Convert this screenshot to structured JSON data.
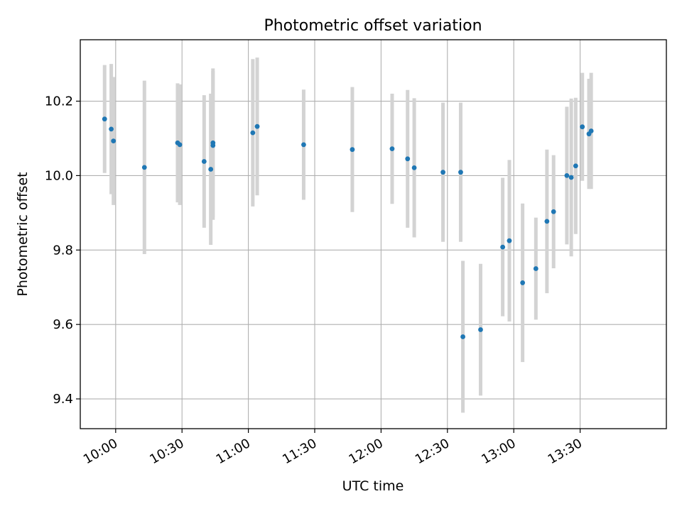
{
  "chart_data": {
    "type": "scatter",
    "title": "Photometric offset variation",
    "xlabel": "UTC time",
    "ylabel": "Photometric offset",
    "x_tick_labels": [
      "10:00",
      "10:30",
      "11:00",
      "11:30",
      "12:00",
      "12:30",
      "13:00",
      "13:30"
    ],
    "y_tick_labels": [
      "9.4",
      "9.6",
      "9.8",
      "10.0",
      "10.2"
    ],
    "xlim": [
      "09:44",
      "14:09"
    ],
    "ylim": [
      9.32,
      10.365
    ],
    "grid": true,
    "legend": "none",
    "marker_color": "#1f77b4",
    "errorbar_color": "#d3d3d3",
    "series": [
      {
        "x": [
          "09:55",
          "09:58",
          "09:59",
          "10:13",
          "10:28",
          "10:29",
          "10:40",
          "10:43",
          "10:44",
          "10:44",
          "11:02",
          "11:04",
          "11:25",
          "11:47",
          "12:05",
          "12:12",
          "12:15",
          "12:28",
          "12:36",
          "12:37",
          "12:45",
          "12:55",
          "12:58",
          "13:04",
          "13:10",
          "13:15",
          "13:18",
          "13:24",
          "13:26",
          "13:28",
          "13:31",
          "13:34",
          "13:35"
        ],
        "y": [
          10.152,
          10.125,
          10.093,
          10.022,
          10.088,
          10.083,
          10.038,
          10.017,
          10.088,
          10.081,
          10.115,
          10.132,
          10.083,
          10.07,
          10.072,
          10.045,
          10.021,
          10.009,
          10.009,
          9.567,
          9.586,
          9.808,
          9.825,
          9.712,
          9.75,
          9.877,
          9.903,
          10.0,
          9.995,
          10.026,
          10.131,
          10.112,
          10.12
        ],
        "yerr": [
          0.145,
          0.175,
          0.172,
          0.233,
          0.16,
          0.162,
          0.178,
          0.203,
          0.2,
          0.2,
          0.198,
          0.185,
          0.148,
          0.168,
          0.148,
          0.185,
          0.187,
          0.187,
          0.187,
          0.204,
          0.177,
          0.186,
          0.217,
          0.213,
          0.137,
          0.193,
          0.152,
          0.185,
          0.212,
          0.183,
          0.145,
          0.148,
          0.156
        ]
      }
    ]
  }
}
